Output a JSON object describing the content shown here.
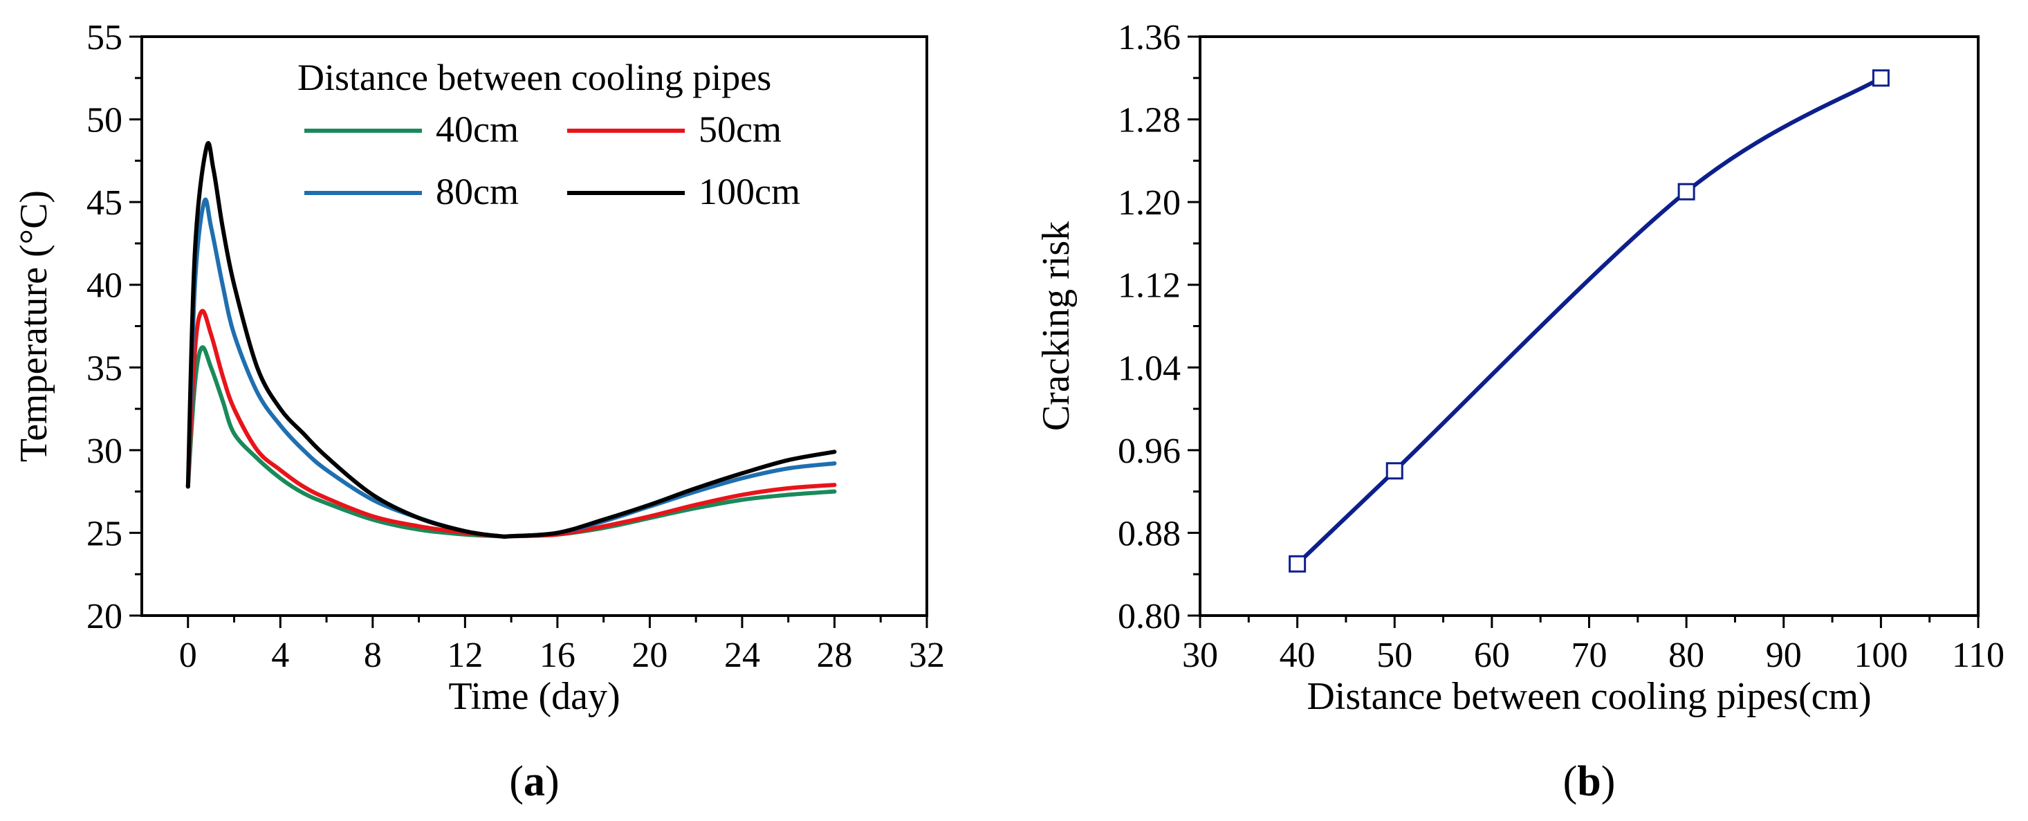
{
  "panels": [
    {
      "label_open": "(",
      "label_letter": "a",
      "label_close": ")"
    },
    {
      "label_open": "(",
      "label_letter": "b",
      "label_close": ")"
    }
  ],
  "chart_data": [
    {
      "type": "line",
      "title": "",
      "xlabel": "Time (day)",
      "ylabel": "Temperature (°C)",
      "xlim": [
        -2,
        32
      ],
      "ylim": [
        20,
        55
      ],
      "xticks": [
        0,
        4,
        8,
        12,
        16,
        20,
        24,
        28,
        32
      ],
      "yticks": [
        20,
        25,
        30,
        35,
        40,
        45,
        50,
        55
      ],
      "legend_title": "Distance between cooling pipes",
      "legend_position": "top-right",
      "grid": false,
      "series": [
        {
          "name": "40cm",
          "color": "#1a8a5a",
          "x": [
            0,
            0.3,
            0.6,
            1.0,
            1.5,
            2,
            3,
            4,
            5,
            6,
            8,
            10,
            12,
            13.5,
            14,
            16,
            18,
            20,
            22,
            24,
            26,
            28
          ],
          "y": [
            27.8,
            34.0,
            36.2,
            35.0,
            33.0,
            31.0,
            29.5,
            28.3,
            27.4,
            26.8,
            25.8,
            25.2,
            24.9,
            24.8,
            24.8,
            24.9,
            25.3,
            25.9,
            26.5,
            27.0,
            27.3,
            27.5
          ]
        },
        {
          "name": "50cm",
          "color": "#e8141a",
          "x": [
            0,
            0.3,
            0.6,
            1.0,
            1.5,
            2,
            3,
            4,
            5,
            6,
            8,
            10,
            12,
            13.5,
            14,
            16,
            18,
            20,
            22,
            24,
            26,
            28
          ],
          "y": [
            27.8,
            36.0,
            38.4,
            37.0,
            34.5,
            32.5,
            30.0,
            28.8,
            27.8,
            27.1,
            26.0,
            25.4,
            25.0,
            24.8,
            24.8,
            24.9,
            25.4,
            26.0,
            26.7,
            27.3,
            27.7,
            27.9
          ]
        },
        {
          "name": "80cm",
          "color": "#1f6fb0",
          "x": [
            0,
            0.3,
            0.7,
            1.0,
            1.5,
            2,
            3,
            4,
            5,
            6,
            8,
            10,
            12,
            13.5,
            14,
            16,
            18,
            20,
            22,
            24,
            26,
            28
          ],
          "y": [
            27.8,
            40.0,
            45.0,
            43.5,
            40.0,
            37.0,
            33.5,
            31.5,
            30.0,
            28.8,
            27.0,
            25.9,
            25.1,
            24.8,
            24.8,
            25.0,
            25.7,
            26.6,
            27.5,
            28.3,
            28.9,
            29.2
          ]
        },
        {
          "name": "100cm",
          "color": "#000000",
          "x": [
            0,
            0.3,
            0.8,
            1.1,
            1.5,
            2,
            3,
            4,
            5,
            6,
            8,
            10,
            12,
            13.5,
            14,
            16,
            18,
            20,
            22,
            24,
            26,
            28
          ],
          "y": [
            27.8,
            42.0,
            48.3,
            47.0,
            43.5,
            40.0,
            35.0,
            32.5,
            31.0,
            29.6,
            27.3,
            25.9,
            25.1,
            24.8,
            24.8,
            25.0,
            25.8,
            26.7,
            27.7,
            28.6,
            29.4,
            29.9
          ]
        }
      ]
    },
    {
      "type": "line",
      "title": "",
      "xlabel": "Distance between cooling pipes(cm)",
      "ylabel": "Cracking risk",
      "xlim": [
        30,
        110
      ],
      "ylim": [
        0.8,
        1.36
      ],
      "xticks": [
        30,
        40,
        50,
        60,
        70,
        80,
        90,
        100,
        110
      ],
      "yticks": [
        0.8,
        0.88,
        0.96,
        1.04,
        1.12,
        1.2,
        1.28,
        1.36
      ],
      "ytick_labels": [
        "0.80",
        "0.88",
        "0.96",
        "1.04",
        "1.12",
        "1.20",
        "1.28",
        "1.36"
      ],
      "grid": false,
      "marker": "open-square",
      "color": "#0d1f8c",
      "series": [
        {
          "x": [
            40,
            50,
            80,
            100
          ],
          "y": [
            0.85,
            0.94,
            1.21,
            1.32
          ]
        }
      ]
    }
  ]
}
